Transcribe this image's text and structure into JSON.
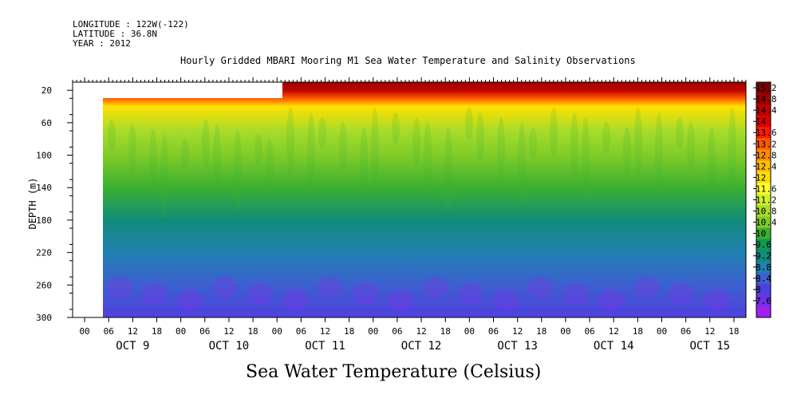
{
  "header": {
    "longitude": "LONGITUDE : 122W(-122)",
    "latitude": "LATITUDE : 36.8N",
    "year": "YEAR : 2012"
  },
  "chart_data": {
    "type": "heatmap",
    "title": "Hourly Gridded MBARI Mooring M1 Sea Water Temperature and Salinity Observations",
    "bottom_title": "Sea Water Temperature (Celsius)",
    "ylabel": "DEPTH (m)",
    "y_ticks": [
      20,
      60,
      100,
      140,
      180,
      220,
      260,
      300
    ],
    "ylim": [
      300,
      10
    ],
    "x_hour_ticks": [
      "00",
      "06",
      "12",
      "18",
      "00",
      "06",
      "12",
      "18",
      "00",
      "06",
      "12",
      "18",
      "00",
      "06",
      "12",
      "18",
      "00",
      "06",
      "12",
      "18",
      "00",
      "06",
      "12",
      "18",
      "00",
      "06",
      "12",
      "18"
    ],
    "x_day_labels": [
      "OCT  9",
      "OCT 10",
      "OCT 11",
      "OCT 12",
      "OCT 13",
      "OCT 14",
      "OCT 15"
    ],
    "colorbar": {
      "levels": [
        "15.2",
        "14.8",
        "14.4",
        "14",
        "13.6",
        "13.2",
        "12.8",
        "12.4",
        "12",
        "11.6",
        "11.2",
        "10.8",
        "10.4",
        "10",
        "9.6",
        "9.2",
        "8.8",
        "8.4",
        "8",
        "7.6"
      ],
      "colors": [
        "#800000",
        "#a00000",
        "#c00000",
        "#e00000",
        "#ff1a00",
        "#ff5a00",
        "#ff8c00",
        "#ffbe00",
        "#ffe000",
        "#ffff30",
        "#d0ee30",
        "#a8dc2a",
        "#80cc28",
        "#3cb030",
        "#109a50",
        "#108c78",
        "#2080b0",
        "#3c60d0",
        "#5040e0",
        "#7030e8",
        "#a020f0"
      ]
    },
    "temperature_profile": [
      {
        "depth": 10,
        "temp": 14.8
      },
      {
        "depth": 20,
        "temp": 14.4
      },
      {
        "depth": 30,
        "temp": 13.2
      },
      {
        "depth": 40,
        "temp": 11.8
      },
      {
        "depth": 70,
        "temp": 11.0
      },
      {
        "depth": 100,
        "temp": 10.6
      },
      {
        "depth": 140,
        "temp": 10.0
      },
      {
        "depth": 180,
        "temp": 9.3
      },
      {
        "depth": 220,
        "temp": 8.9
      },
      {
        "depth": 260,
        "temp": 8.4
      },
      {
        "depth": 300,
        "temp": 8.0
      }
    ]
  }
}
